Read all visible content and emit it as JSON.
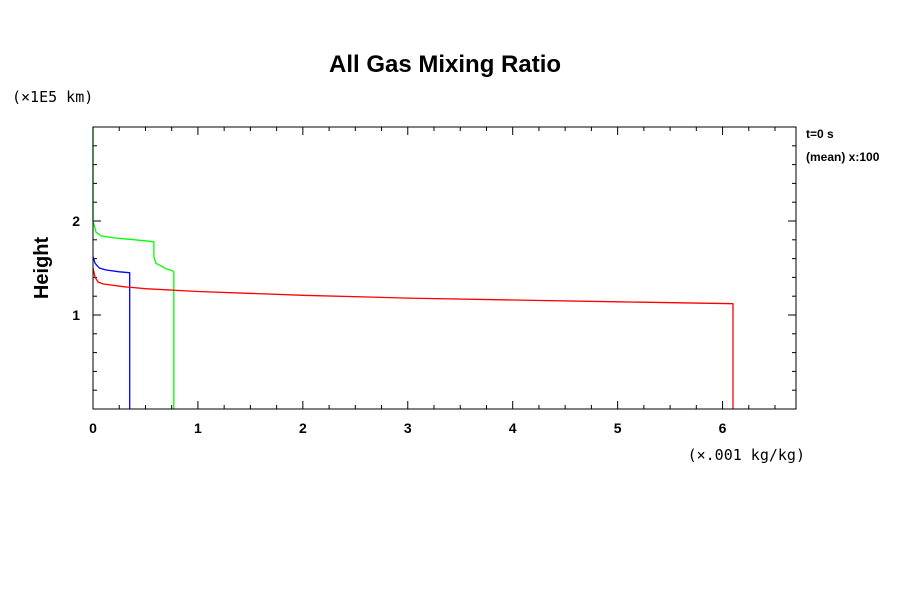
{
  "chart_data": {
    "type": "line",
    "title": "All Gas Mixing Ratio",
    "ylabel": "Height",
    "xlabel": "",
    "y_unit": "(×1E5 km)",
    "x_unit": "(×.001 kg/kg)",
    "xlim": [
      0,
      6.7
    ],
    "ylim": [
      0,
      3.0
    ],
    "x_ticks": [
      0,
      1,
      2,
      3,
      4,
      5,
      6
    ],
    "y_ticks": [
      1,
      2
    ],
    "x_minor_step": 0.25,
    "y_minor_step": 0.2,
    "grid": false,
    "legend": null,
    "annotations": [
      "t=0 s",
      "(mean) x:100"
    ],
    "series": [
      {
        "color": "#0000ff",
        "points": [
          [
            0.0,
            1.62
          ],
          [
            0.02,
            1.55
          ],
          [
            0.06,
            1.5
          ],
          [
            0.12,
            1.48
          ],
          [
            0.25,
            1.46
          ],
          [
            0.35,
            1.45
          ],
          [
            0.35,
            0.0
          ]
        ]
      },
      {
        "color": "#00ff00",
        "points": [
          [
            0.0,
            3.0
          ],
          [
            0.0,
            2.0
          ],
          [
            0.03,
            1.88
          ],
          [
            0.08,
            1.84
          ],
          [
            0.2,
            1.82
          ],
          [
            0.4,
            1.8
          ],
          [
            0.58,
            1.78
          ],
          [
            0.58,
            1.62
          ],
          [
            0.6,
            1.55
          ],
          [
            0.65,
            1.52
          ],
          [
            0.7,
            1.49
          ],
          [
            0.76,
            1.47
          ],
          [
            0.77,
            1.46
          ],
          [
            0.77,
            0.0
          ]
        ]
      },
      {
        "color": "#ff0000",
        "points": [
          [
            0.0,
            1.5
          ],
          [
            0.02,
            1.4
          ],
          [
            0.05,
            1.35
          ],
          [
            0.1,
            1.33
          ],
          [
            0.3,
            1.3
          ],
          [
            0.5,
            1.28
          ],
          [
            1.0,
            1.25
          ],
          [
            2.0,
            1.21
          ],
          [
            3.0,
            1.18
          ],
          [
            4.0,
            1.16
          ],
          [
            5.0,
            1.14
          ],
          [
            6.1,
            1.12
          ],
          [
            6.1,
            0.0
          ]
        ]
      }
    ]
  }
}
